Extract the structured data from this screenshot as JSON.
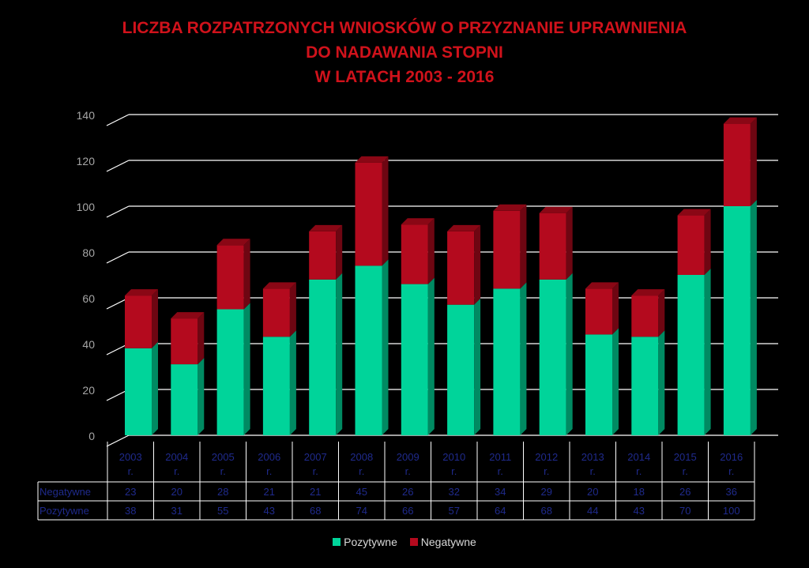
{
  "title_lines": [
    "LICZBA ROZPATRZONYCH WNIOSKÓW O PRZYZNANIE UPRAWNIENIA",
    "DO NADAWANIA STOPNI",
    "W LATACH 2003 - 2016"
  ],
  "colors": {
    "positive": "#00d49a",
    "positive_side": "#008a62",
    "positive_top": "#3fe8b8",
    "negative": "#b40a1e",
    "negative_side": "#6e0612",
    "negative_top": "#8a0715",
    "gridline": "#ffffff",
    "title": "#d0121b"
  },
  "chart_data": {
    "type": "bar",
    "stacked": true,
    "title": "LICZBA ROZPATRZONYCH WNIOSKÓW O PRZYZNANIE UPRAWNIENIA DO NADAWANIA STOPNI W LATACH 2003 - 2016",
    "categories": [
      "2003 r.",
      "2004 r.",
      "2005 r.",
      "2006 r.",
      "2007 r.",
      "2008 r.",
      "2009 r.",
      "2010 r.",
      "2011 r.",
      "2012 r.",
      "2013 r.",
      "2014 r.",
      "2015 r.",
      "2016 r."
    ],
    "category_lines": [
      [
        "2003",
        "r."
      ],
      [
        "2004",
        "r."
      ],
      [
        "2005",
        "r."
      ],
      [
        "2006",
        "r."
      ],
      [
        "2007",
        "r."
      ],
      [
        "2008",
        "r."
      ],
      [
        "2009",
        "r."
      ],
      [
        "2010",
        "r."
      ],
      [
        "2011",
        "r."
      ],
      [
        "2012",
        "r."
      ],
      [
        "2013",
        "r."
      ],
      [
        "2014",
        "r."
      ],
      [
        "2015",
        "r."
      ],
      [
        "2016",
        "r."
      ]
    ],
    "series": [
      {
        "name": "Pozytywne",
        "values": [
          38,
          31,
          55,
          43,
          68,
          74,
          66,
          57,
          64,
          68,
          44,
          43,
          70,
          100
        ]
      },
      {
        "name": "Negatywne",
        "values": [
          23,
          20,
          28,
          21,
          21,
          45,
          26,
          32,
          34,
          29,
          20,
          18,
          26,
          36
        ]
      }
    ],
    "table_rows": [
      {
        "label": "Negatywne",
        "series": 1
      },
      {
        "label": "Pozytywne",
        "series": 0
      }
    ],
    "ylim": [
      0,
      140
    ],
    "yticks": [
      0,
      20,
      40,
      60,
      80,
      100,
      120,
      140
    ],
    "grid": true,
    "legend": [
      "Pozytywne",
      "Negatywne"
    ],
    "legend_position": "bottom"
  }
}
